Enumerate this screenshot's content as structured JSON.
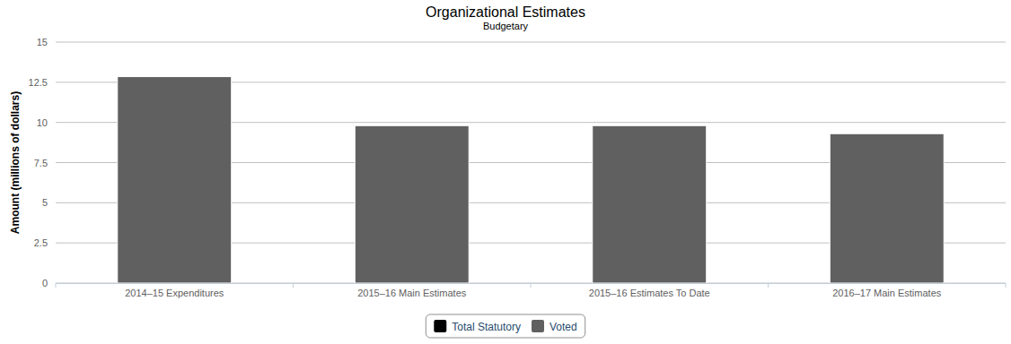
{
  "chart_data": {
    "type": "bar",
    "title": "Organizational Estimates",
    "subtitle": "Budgetary",
    "y_label": "Amount (millions of dollars)",
    "categories": [
      "2014–15 Expenditures",
      "2015–16 Main Estimates",
      "2015–16 Estimates To Date",
      "2016–17 Main Estimates"
    ],
    "series": [
      {
        "name": "Total Statutory",
        "color": "#000000",
        "values": [
          0,
          0,
          0,
          0
        ]
      },
      {
        "name": "Voted",
        "color": "#606060",
        "values": [
          12.85,
          9.8,
          9.8,
          9.3
        ]
      }
    ],
    "stacked": true,
    "ylim": [
      0,
      15
    ],
    "yticks": [
      0,
      2.5,
      5,
      7.5,
      10,
      12.5,
      15
    ],
    "grid": true,
    "legend": "bottom"
  }
}
